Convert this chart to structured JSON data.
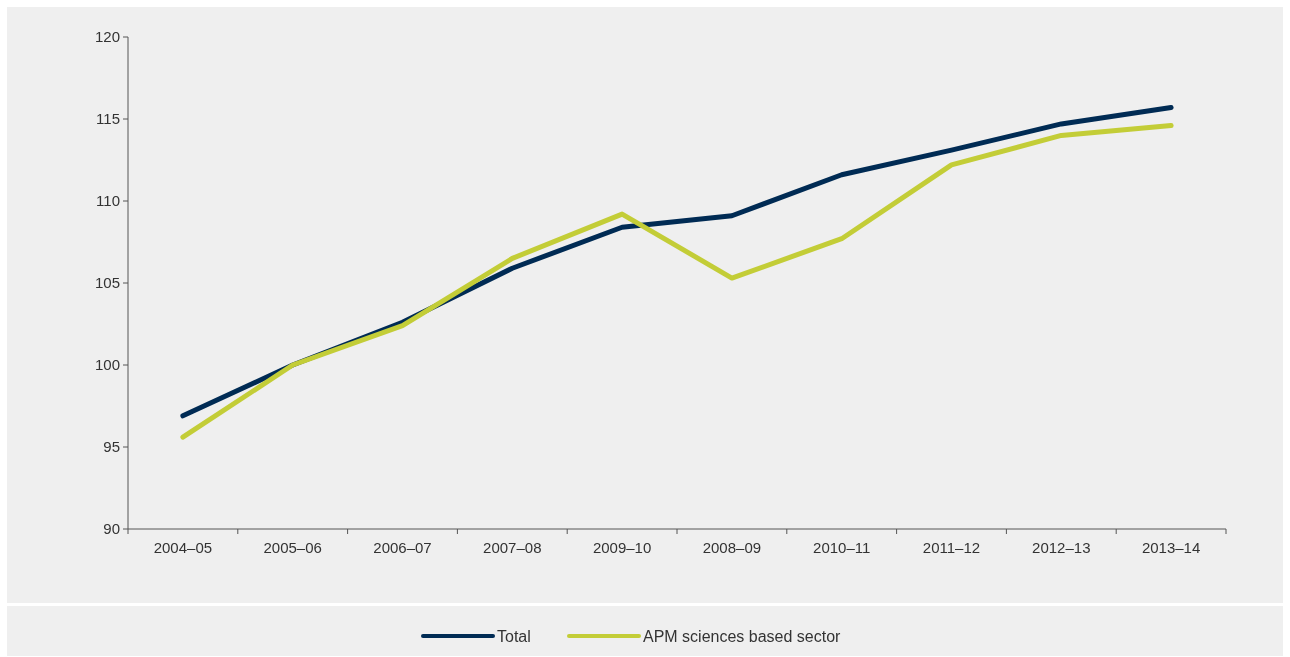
{
  "chart_data": {
    "type": "line",
    "categories": [
      "2004–05",
      "2005–06",
      "2006–07",
      "2007–08",
      "2009–10",
      "2008–09",
      "2010–11",
      "2011–12",
      "2012–13",
      "2013–14"
    ],
    "series": [
      {
        "name": "Total",
        "color": "#002b54",
        "values": [
          96.9,
          100.0,
          102.6,
          105.9,
          108.4,
          109.1,
          111.6,
          113.1,
          114.7,
          115.7
        ]
      },
      {
        "name": "APM sciences based sector",
        "color": "#c3cd37",
        "values": [
          95.6,
          100.0,
          102.4,
          106.5,
          109.2,
          105.3,
          107.7,
          112.2,
          114.0,
          114.6
        ]
      }
    ],
    "ylim": [
      90,
      120
    ],
    "yticks": [
      90,
      95,
      100,
      105,
      110,
      115,
      120
    ],
    "grid": false,
    "legend": "bottom",
    "line_style": "solid",
    "marker": "none"
  }
}
